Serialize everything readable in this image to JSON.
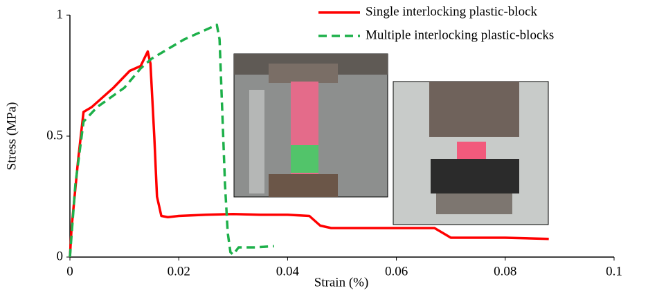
{
  "chart_data": {
    "type": "line",
    "x_label": "Strain (%)",
    "y_label": "Stress (MPa)",
    "xlim": [
      0,
      0.1
    ],
    "xticks": [
      0,
      0.02,
      0.04,
      0.06,
      0.08,
      0.1
    ],
    "ylim": [
      0,
      1
    ],
    "yticks": [
      0,
      0.5,
      1
    ],
    "grid": false,
    "legend": "top-right",
    "series": [
      {
        "name": "Single interlocking plastic-block",
        "color": "#ff0000",
        "dash": false,
        "x": [
          0,
          0.0003,
          0.0015,
          0.0025,
          0.004,
          0.008,
          0.011,
          0.013,
          0.0143,
          0.0148,
          0.0155,
          0.016,
          0.0168,
          0.018,
          0.02,
          0.025,
          0.03,
          0.035,
          0.04,
          0.044,
          0.046,
          0.048,
          0.055,
          0.06,
          0.067,
          0.07,
          0.075,
          0.08,
          0.088
        ],
        "values": [
          0,
          0.12,
          0.4,
          0.6,
          0.62,
          0.7,
          0.77,
          0.79,
          0.85,
          0.8,
          0.5,
          0.25,
          0.17,
          0.165,
          0.17,
          0.175,
          0.178,
          0.175,
          0.175,
          0.17,
          0.13,
          0.12,
          0.12,
          0.12,
          0.12,
          0.08,
          0.08,
          0.08,
          0.075
        ]
      },
      {
        "name": "Multiple interlocking plastic-blocks",
        "color": "#1db04a",
        "dash": true,
        "x": [
          0,
          0.001,
          0.0025,
          0.005,
          0.01,
          0.013,
          0.015,
          0.018,
          0.021,
          0.024,
          0.027,
          0.0275,
          0.028,
          0.0285,
          0.029,
          0.0295,
          0.03,
          0.031,
          0.034,
          0.0375
        ],
        "values": [
          0,
          0.3,
          0.56,
          0.62,
          0.7,
          0.78,
          0.82,
          0.86,
          0.9,
          0.93,
          0.96,
          0.9,
          0.6,
          0.3,
          0.1,
          0.02,
          0.01,
          0.04,
          0.04,
          0.045
        ]
      }
    ]
  }
}
